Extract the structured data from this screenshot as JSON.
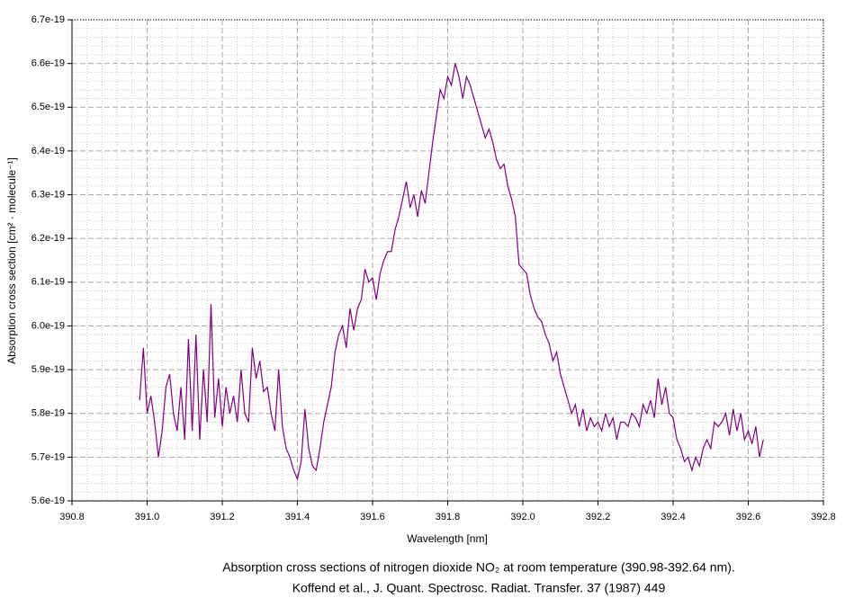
{
  "chart_data": {
    "type": "line",
    "xlabel": "Wavelength [nm]",
    "ylabel": "Absorption cross section [cm² · molecule⁻¹]",
    "caption": [
      "Absorption cross sections of nitrogen dioxide NO₂ at room temperature (390.98-392.64 nm).",
      "Koffend et al., J. Quant. Spectrosc. Radiat. Transfer. 37 (1987) 449"
    ],
    "xlim": [
      390.8,
      392.8
    ],
    "xticks": [
      390.8,
      {
        "value": 391.0,
        "label": "391.0"
      },
      391.2,
      391.4,
      391.6,
      391.8,
      {
        "value": 392.0,
        "label": "392.0"
      },
      392.2,
      392.4,
      392.6,
      392.8
    ],
    "ylim": [
      5.6e-19,
      6.7e-19
    ],
    "yticks": [
      {
        "value": 5.6e-19,
        "label": "5.6e-19"
      },
      {
        "value": 5.7e-19,
        "label": "5.7e-19"
      },
      {
        "value": 5.8e-19,
        "label": "5.8e-19"
      },
      {
        "value": 5.9e-19,
        "label": "5.9e-19"
      },
      {
        "value": 6e-19,
        "label": "6.0e-19"
      },
      {
        "value": 6.1e-19,
        "label": "6.1e-19"
      },
      {
        "value": 6.2e-19,
        "label": "6.2e-19"
      },
      {
        "value": 6.3e-19,
        "label": "6.3e-19"
      },
      {
        "value": 6.4e-19,
        "label": "6.4e-19"
      },
      {
        "value": 6.5e-19,
        "label": "6.5e-19"
      },
      {
        "value": 6.6e-19,
        "label": "6.6e-19"
      },
      {
        "value": 6.7e-19,
        "label": "6.7e-19"
      }
    ],
    "grid": true,
    "minor_grid": true,
    "color": "#800080",
    "x": [
      390.98,
      390.99,
      391.0,
      391.01,
      391.02,
      391.03,
      391.04,
      391.05,
      391.06,
      391.07,
      391.08,
      391.09,
      391.1,
      391.11,
      391.12,
      391.13,
      391.14,
      391.15,
      391.16,
      391.17,
      391.18,
      391.19,
      391.2,
      391.21,
      391.22,
      391.23,
      391.24,
      391.25,
      391.26,
      391.27,
      391.28,
      391.29,
      391.3,
      391.31,
      391.32,
      391.33,
      391.34,
      391.35,
      391.36,
      391.37,
      391.38,
      391.39,
      391.4,
      391.41,
      391.42,
      391.43,
      391.44,
      391.45,
      391.46,
      391.47,
      391.48,
      391.49,
      391.5,
      391.51,
      391.52,
      391.53,
      391.54,
      391.55,
      391.56,
      391.57,
      391.58,
      391.59,
      391.6,
      391.61,
      391.62,
      391.63,
      391.64,
      391.65,
      391.66,
      391.67,
      391.68,
      391.69,
      391.7,
      391.71,
      391.72,
      391.73,
      391.74,
      391.75,
      391.76,
      391.77,
      391.78,
      391.79,
      391.8,
      391.81,
      391.82,
      391.83,
      391.84,
      391.85,
      391.86,
      391.87,
      391.88,
      391.89,
      391.9,
      391.91,
      391.92,
      391.93,
      391.94,
      391.95,
      391.96,
      391.97,
      391.98,
      391.99,
      392.0,
      392.01,
      392.02,
      392.03,
      392.04,
      392.05,
      392.06,
      392.07,
      392.08,
      392.09,
      392.1,
      392.11,
      392.12,
      392.13,
      392.14,
      392.15,
      392.16,
      392.17,
      392.18,
      392.19,
      392.2,
      392.21,
      392.22,
      392.23,
      392.24,
      392.25,
      392.26,
      392.27,
      392.28,
      392.29,
      392.3,
      392.31,
      392.32,
      392.33,
      392.34,
      392.35,
      392.36,
      392.37,
      392.38,
      392.39,
      392.4,
      392.41,
      392.42,
      392.43,
      392.44,
      392.45,
      392.46,
      392.47,
      392.48,
      392.49,
      392.5,
      392.51,
      392.52,
      392.53,
      392.54,
      392.55,
      392.56,
      392.57,
      392.58,
      392.59,
      392.6,
      392.61,
      392.62,
      392.63,
      392.64
    ],
    "values": [
      5.83e-19,
      5.95e-19,
      5.8e-19,
      5.84e-19,
      5.78e-19,
      5.7e-19,
      5.76e-19,
      5.86e-19,
      5.89e-19,
      5.8e-19,
      5.76e-19,
      5.86e-19,
      5.74e-19,
      5.97e-19,
      5.76e-19,
      5.98e-19,
      5.74e-19,
      5.9e-19,
      5.78e-19,
      6.05e-19,
      5.79e-19,
      5.88e-19,
      5.77e-19,
      5.86e-19,
      5.8e-19,
      5.84e-19,
      5.78e-19,
      5.9e-19,
      5.8e-19,
      5.78e-19,
      5.95e-19,
      5.88e-19,
      5.92e-19,
      5.85e-19,
      5.86e-19,
      5.8e-19,
      5.76e-19,
      5.9e-19,
      5.77e-19,
      5.72e-19,
      5.7e-19,
      5.67e-19,
      5.65e-19,
      5.69e-19,
      5.81e-19,
      5.72e-19,
      5.68e-19,
      5.67e-19,
      5.72e-19,
      5.78e-19,
      5.82e-19,
      5.86e-19,
      5.94e-19,
      5.98e-19,
      6e-19,
      5.95e-19,
      6.04e-19,
      5.99e-19,
      6.04e-19,
      6.06e-19,
      6.13e-19,
      6.1e-19,
      6.11e-19,
      6.06e-19,
      6.12e-19,
      6.15e-19,
      6.17e-19,
      6.17e-19,
      6.22e-19,
      6.25e-19,
      6.29e-19,
      6.33e-19,
      6.27e-19,
      6.3e-19,
      6.25e-19,
      6.31e-19,
      6.28e-19,
      6.35e-19,
      6.42e-19,
      6.48e-19,
      6.54e-19,
      6.52e-19,
      6.57e-19,
      6.55e-19,
      6.6e-19,
      6.57e-19,
      6.52e-19,
      6.57e-19,
      6.55e-19,
      6.52e-19,
      6.49e-19,
      6.46e-19,
      6.43e-19,
      6.45e-19,
      6.42e-19,
      6.38e-19,
      6.36e-19,
      6.37e-19,
      6.32e-19,
      6.29e-19,
      6.25e-19,
      6.14e-19,
      6.13e-19,
      6.12e-19,
      6.07e-19,
      6.04e-19,
      6.02e-19,
      6.01e-19,
      5.98e-19,
      5.96e-19,
      5.92e-19,
      5.94e-19,
      5.89e-19,
      5.86e-19,
      5.83e-19,
      5.8e-19,
      5.82e-19,
      5.77e-19,
      5.81e-19,
      5.76e-19,
      5.79e-19,
      5.77e-19,
      5.78e-19,
      5.76e-19,
      5.8e-19,
      5.77e-19,
      5.79e-19,
      5.74e-19,
      5.78e-19,
      5.78e-19,
      5.77e-19,
      5.8e-19,
      5.79e-19,
      5.77e-19,
      5.82e-19,
      5.8e-19,
      5.83e-19,
      5.79e-19,
      5.88e-19,
      5.82e-19,
      5.86e-19,
      5.8e-19,
      5.79e-19,
      5.74e-19,
      5.72e-19,
      5.69e-19,
      5.7e-19,
      5.67e-19,
      5.7e-19,
      5.68e-19,
      5.72e-19,
      5.74e-19,
      5.72e-19,
      5.78e-19,
      5.77e-19,
      5.78e-19,
      5.8e-19,
      5.75e-19,
      5.81e-19,
      5.76e-19,
      5.8e-19,
      5.74e-19,
      5.76e-19,
      5.73e-19,
      5.77e-19,
      5.7e-19,
      5.74e-19
    ]
  }
}
